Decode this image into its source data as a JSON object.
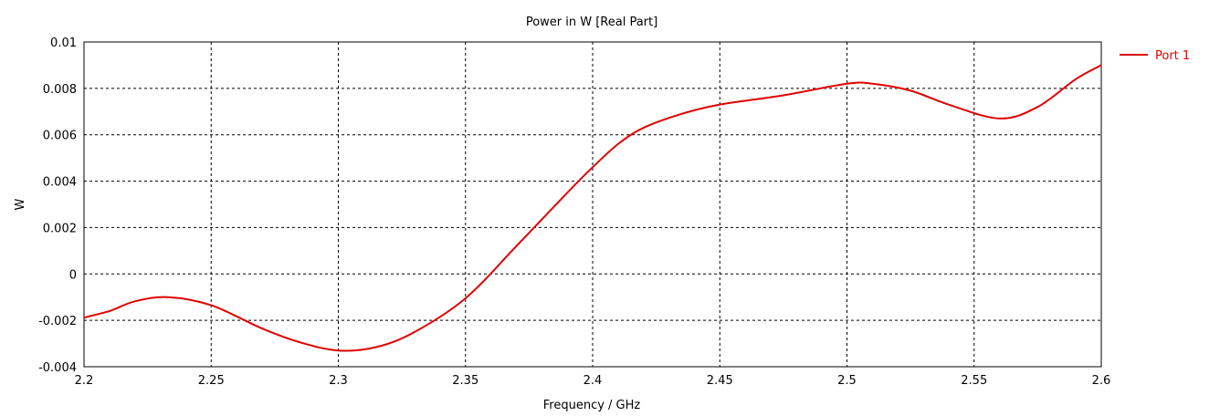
{
  "chart_data": {
    "type": "line",
    "title": "Power in W [Real Part]",
    "xlabel": "Frequency / GHz",
    "ylabel": "W",
    "xlim": [
      2.2,
      2.6
    ],
    "ylim": [
      -0.004,
      0.01
    ],
    "xticks": [
      "2.2",
      "2.25",
      "2.3",
      "2.35",
      "2.4",
      "2.45",
      "2.5",
      "2.55",
      "2.6"
    ],
    "yticks": [
      "0.01",
      "0.008",
      "0.006",
      "0.004",
      "0.002",
      "0",
      "-0.002",
      "-0.004"
    ],
    "grid": true,
    "legend_position": "top-right, outside plot",
    "series": [
      {
        "name": "Port 1",
        "color": "#e00000",
        "x": [
          2.2,
          2.21,
          2.22,
          2.233,
          2.25,
          2.27,
          2.285,
          2.3,
          2.315,
          2.33,
          2.35,
          2.37,
          2.39,
          2.4,
          2.41,
          2.42,
          2.435,
          2.45,
          2.475,
          2.5,
          2.51,
          2.525,
          2.54,
          2.56,
          2.575,
          2.59,
          2.6
        ],
        "y": [
          -0.00188,
          -0.0016,
          -0.00118,
          -0.001,
          -0.00135,
          -0.00235,
          -0.00295,
          -0.0033,
          -0.00315,
          -0.0025,
          -0.00105,
          0.0012,
          0.0035,
          0.0046,
          0.0056,
          0.0063,
          0.0069,
          0.0073,
          0.0077,
          0.0082,
          0.0082,
          0.0079,
          0.0073,
          0.0067,
          0.0072,
          0.0084,
          0.009
        ]
      }
    ]
  }
}
